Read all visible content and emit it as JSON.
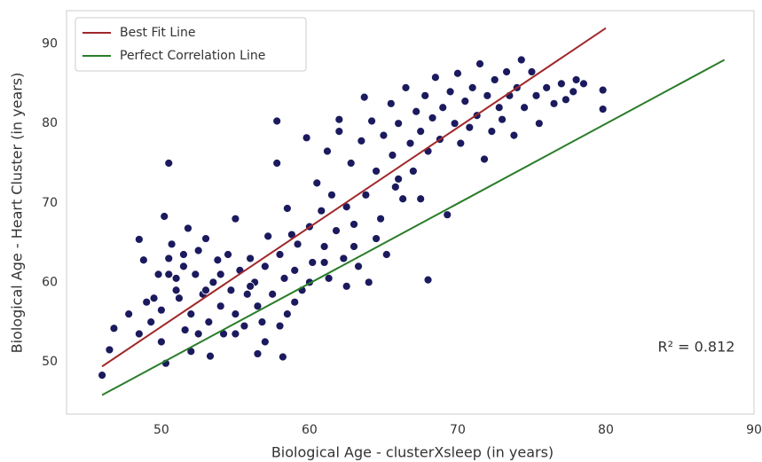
{
  "chart_data": {
    "type": "scatter",
    "xlabel": "Biological Age - clusterXsleep (in years)",
    "ylabel": "Biological Age - Heart Cluster (in years)",
    "annotation": "R² = 0.812",
    "xlim": [
      43.6,
      90
    ],
    "ylim": [
      43.4,
      94.2
    ],
    "xticks": [
      50,
      60,
      70,
      80,
      90
    ],
    "yticks": [
      50,
      60,
      70,
      80,
      90
    ],
    "grid": false,
    "legend": "upper left",
    "points": {
      "color": "#1b1a5e",
      "x": [
        46,
        46.5,
        46.8,
        47.8,
        48.5,
        48.5,
        48.8,
        49,
        49.3,
        49.5,
        49.8,
        50,
        50,
        50.2,
        50.3,
        50.5,
        50.7,
        50.5,
        51,
        51.2,
        51.5,
        51.8,
        51.6,
        52,
        52,
        52.3,
        52.5,
        52.8,
        53,
        53.2,
        53.3,
        53.5,
        53.8,
        54,
        54.2,
        54.5,
        54.7,
        55,
        55,
        55.3,
        55.6,
        55.8,
        56,
        56.3,
        56.5,
        56.5,
        56.8,
        57,
        57.2,
        57.5,
        57.8,
        57.8,
        58,
        58.2,
        58.3,
        58.5,
        58.5,
        58.8,
        59,
        59.2,
        59.5,
        59.8,
        60,
        60.2,
        60.5,
        60.8,
        61,
        61.2,
        61.3,
        61.5,
        61.8,
        62,
        62,
        62.3,
        62.5,
        62.8,
        63,
        63.3,
        63.5,
        63.7,
        63.8,
        64,
        64.2,
        64.5,
        64.8,
        65,
        65.2,
        65.5,
        65.6,
        65.8,
        66,
        66.3,
        66.5,
        66.8,
        67,
        67.2,
        67.5,
        67.8,
        68,
        68,
        68.3,
        68.5,
        68.8,
        69,
        69.3,
        69.5,
        69.8,
        70,
        70.2,
        70.5,
        70.8,
        71,
        71.3,
        71.5,
        71.8,
        72,
        72.3,
        72.5,
        72.8,
        73,
        73.3,
        73.5,
        73.8,
        74,
        74.3,
        74.5,
        75,
        75.3,
        75.5,
        76,
        76.5,
        77,
        77.3,
        77.8,
        78,
        78.5,
        79.8,
        79.8,
        62.5,
        57,
        55,
        52.5,
        51,
        53,
        54,
        56,
        58,
        59,
        60,
        61,
        63,
        64.5,
        66,
        67.5,
        50.5,
        51.5
      ],
      "values": [
        48.3,
        51.5,
        54.2,
        56,
        53.5,
        65.4,
        62.8,
        57.5,
        55,
        58,
        61,
        52.5,
        56.5,
        68.3,
        49.8,
        63,
        64.8,
        75,
        60.5,
        58,
        62,
        66.8,
        54,
        56,
        51.3,
        61,
        64,
        58.5,
        65.5,
        55,
        50.7,
        60,
        62.8,
        57,
        53.5,
        63.5,
        59,
        68,
        56,
        61.5,
        54.5,
        58.5,
        63,
        60,
        51,
        57,
        55,
        62,
        65.8,
        58.5,
        80.3,
        75,
        63.5,
        50.6,
        60.5,
        69.3,
        56,
        66,
        61.5,
        64.8,
        59,
        78.2,
        67,
        62.5,
        72.5,
        69,
        64.5,
        76.5,
        60.5,
        71,
        66.5,
        79,
        80.5,
        63,
        69.5,
        75,
        67.3,
        62,
        77.8,
        83.3,
        71,
        60,
        80.3,
        74,
        68,
        78.5,
        63.5,
        82.5,
        76,
        72,
        80,
        70.5,
        84.5,
        77.5,
        74,
        81.5,
        79,
        83.5,
        60.3,
        76.5,
        80.7,
        85.8,
        78,
        82,
        68.5,
        84,
        80,
        86.3,
        77.5,
        82.8,
        79.5,
        84.5,
        81,
        87.5,
        75.5,
        83.5,
        79,
        85.5,
        82,
        80.5,
        86.5,
        83.5,
        78.5,
        84.5,
        88,
        82,
        86.5,
        83.5,
        80,
        84.5,
        82.5,
        85,
        83,
        84,
        85.5,
        85,
        84.2,
        81.8,
        59.5,
        52.5,
        53.5,
        53.5,
        59,
        59,
        61,
        59.5,
        54.5,
        57.5,
        60,
        62.5,
        64.5,
        65.5,
        73,
        70.5,
        61,
        63.5
      ]
    },
    "series": [
      {
        "name": "Best Fit Line",
        "color": "#a0282a",
        "x": [
          46,
          80
        ],
        "values": [
          49.4,
          92
        ]
      },
      {
        "name": "Perfect Correlation Line",
        "color": "#2a7d2a",
        "x": [
          46,
          88
        ],
        "values": [
          45.8,
          88
        ]
      }
    ]
  }
}
